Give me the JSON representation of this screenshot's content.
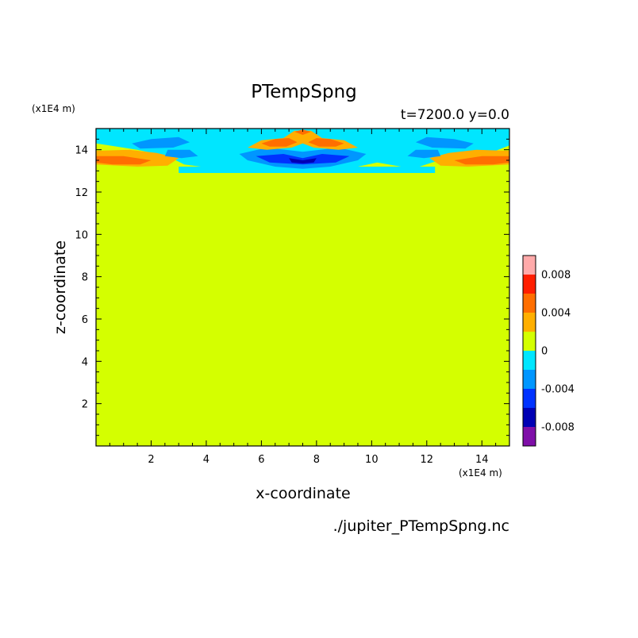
{
  "chart_data": {
    "type": "heatmap",
    "title": "PTempSpng",
    "subtitle": "t=7200.0 y=0.0",
    "xlabel": "x-coordinate",
    "ylabel": "z-coordinate",
    "x_unit": "(x1E4 m)",
    "y_unit": "(x1E4 m)",
    "source": "./jupiter_PTempSpng.nc",
    "xlim": [
      0,
      15
    ],
    "ylim": [
      0,
      15
    ],
    "x_ticks": [
      2,
      4,
      6,
      8,
      10,
      12,
      14
    ],
    "y_ticks": [
      2,
      4,
      6,
      8,
      10,
      12,
      14
    ],
    "colorbar": {
      "levels": [
        -0.01,
        -0.008,
        -0.006,
        -0.004,
        -0.002,
        0,
        0.002,
        0.004,
        0.006,
        0.008,
        0.01
      ],
      "colors": [
        "#7f0fa8",
        "#0000b4",
        "#0032ff",
        "#0096ff",
        "#00e6ff",
        "#d4ff00",
        "#ffaf00",
        "#ff6e00",
        "#ff1e00",
        "#ffaaaa"
      ],
      "tick_values": [
        0.008,
        0.004,
        0,
        -0.004,
        -0.008
      ],
      "tick_labels": [
        "0.008",
        "0.004",
        "0",
        "-0.004",
        "-0.008"
      ]
    },
    "background_value": 0,
    "background_color": "#d4ff00",
    "regions": [
      {
        "color": "#00e6ff",
        "points": [
          [
            0,
            15
          ],
          [
            15,
            15
          ],
          [
            15,
            14.2
          ],
          [
            14.2,
            13.8
          ],
          [
            13,
            13.7
          ],
          [
            12.2,
            13.4
          ],
          [
            11.5,
            13.1
          ],
          [
            10.2,
            13.4
          ],
          [
            9.5,
            13.2
          ],
          [
            8.5,
            13.0
          ],
          [
            6.5,
            13.0
          ],
          [
            5.0,
            13.0
          ],
          [
            3.2,
            13.3
          ],
          [
            2.6,
            13.7
          ],
          [
            1.5,
            14.0
          ],
          [
            0,
            14.3
          ]
        ]
      },
      {
        "color": "#00e6ff",
        "points": [
          [
            3.0,
            13.2
          ],
          [
            12.3,
            13.2
          ],
          [
            12.3,
            12.9
          ],
          [
            3.0,
            12.9
          ]
        ]
      },
      {
        "color": "#ffaf00",
        "points": [
          [
            0,
            13.95
          ],
          [
            1.2,
            14.0
          ],
          [
            2.2,
            13.85
          ],
          [
            3.0,
            13.6
          ],
          [
            2.6,
            13.25
          ],
          [
            1.5,
            13.2
          ],
          [
            0,
            13.3
          ]
        ]
      },
      {
        "color": "#ff6e00",
        "points": [
          [
            0,
            13.7
          ],
          [
            1.0,
            13.7
          ],
          [
            2.0,
            13.5
          ],
          [
            1.6,
            13.3
          ],
          [
            0.6,
            13.3
          ],
          [
            0,
            13.4
          ]
        ]
      },
      {
        "color": "#ffaf00",
        "points": [
          [
            15,
            13.95
          ],
          [
            13.8,
            14.0
          ],
          [
            12.8,
            13.85
          ],
          [
            12.1,
            13.6
          ],
          [
            12.5,
            13.25
          ],
          [
            13.5,
            13.2
          ],
          [
            15,
            13.3
          ]
        ]
      },
      {
        "color": "#ff6e00",
        "points": [
          [
            15,
            13.7
          ],
          [
            14.0,
            13.7
          ],
          [
            13.0,
            13.5
          ],
          [
            13.4,
            13.3
          ],
          [
            14.4,
            13.3
          ],
          [
            15,
            13.4
          ]
        ]
      },
      {
        "color": "#0096ff",
        "points": [
          [
            2.0,
            14.5
          ],
          [
            3.0,
            14.6
          ],
          [
            3.4,
            14.35
          ],
          [
            2.8,
            14.1
          ],
          [
            1.6,
            14.05
          ],
          [
            1.3,
            14.3
          ]
        ]
      },
      {
        "color": "#0096ff",
        "points": [
          [
            13.0,
            14.5
          ],
          [
            12.0,
            14.6
          ],
          [
            11.6,
            14.35
          ],
          [
            12.2,
            14.1
          ],
          [
            13.4,
            14.05
          ],
          [
            13.7,
            14.3
          ]
        ]
      },
      {
        "color": "#0096ff",
        "points": [
          [
            2.6,
            14.0
          ],
          [
            3.4,
            14.0
          ],
          [
            3.7,
            13.7
          ],
          [
            3.1,
            13.6
          ],
          [
            2.5,
            13.7
          ]
        ]
      },
      {
        "color": "#0096ff",
        "points": [
          [
            12.4,
            14.0
          ],
          [
            11.6,
            14.0
          ],
          [
            11.3,
            13.7
          ],
          [
            11.9,
            13.6
          ],
          [
            12.5,
            13.7
          ]
        ]
      },
      {
        "color": "#0096ff",
        "points": [
          [
            5.2,
            13.8
          ],
          [
            6.2,
            14.1
          ],
          [
            7.5,
            13.9
          ],
          [
            8.8,
            14.1
          ],
          [
            9.8,
            13.8
          ],
          [
            9.5,
            13.5
          ],
          [
            8.5,
            13.2
          ],
          [
            7.5,
            13.1
          ],
          [
            6.5,
            13.2
          ],
          [
            5.5,
            13.5
          ]
        ]
      },
      {
        "color": "#0032ff",
        "points": [
          [
            5.8,
            13.7
          ],
          [
            6.8,
            13.8
          ],
          [
            7.5,
            13.6
          ],
          [
            8.2,
            13.8
          ],
          [
            9.2,
            13.7
          ],
          [
            8.7,
            13.4
          ],
          [
            7.5,
            13.3
          ],
          [
            6.3,
            13.4
          ]
        ]
      },
      {
        "color": "#0000b4",
        "points": [
          [
            7.0,
            13.6
          ],
          [
            7.5,
            13.5
          ],
          [
            8.0,
            13.6
          ],
          [
            7.9,
            13.4
          ],
          [
            7.5,
            13.35
          ],
          [
            7.1,
            13.4
          ]
        ]
      },
      {
        "color": "#ffaf00",
        "points": [
          [
            5.5,
            14.1
          ],
          [
            6.0,
            14.45
          ],
          [
            6.8,
            14.55
          ],
          [
            7.2,
            14.9
          ],
          [
            7.8,
            14.9
          ],
          [
            8.2,
            14.55
          ],
          [
            9.0,
            14.45
          ],
          [
            9.5,
            14.1
          ],
          [
            8.8,
            14.0
          ],
          [
            7.9,
            14.1
          ],
          [
            7.5,
            14.3
          ],
          [
            7.1,
            14.1
          ],
          [
            6.2,
            14.0
          ]
        ]
      },
      {
        "color": "#ff6e00",
        "points": [
          [
            6.0,
            14.3
          ],
          [
            6.5,
            14.5
          ],
          [
            7.0,
            14.55
          ],
          [
            7.3,
            14.35
          ],
          [
            6.9,
            14.15
          ],
          [
            6.3,
            14.15
          ]
        ]
      },
      {
        "color": "#ff6e00",
        "points": [
          [
            9.0,
            14.3
          ],
          [
            8.5,
            14.5
          ],
          [
            8.0,
            14.55
          ],
          [
            7.7,
            14.35
          ],
          [
            8.1,
            14.15
          ],
          [
            8.7,
            14.15
          ]
        ]
      },
      {
        "color": "#ff6e00",
        "points": [
          [
            7.2,
            14.85
          ],
          [
            7.5,
            14.95
          ],
          [
            7.8,
            14.85
          ],
          [
            7.5,
            14.7
          ]
        ]
      }
    ]
  }
}
